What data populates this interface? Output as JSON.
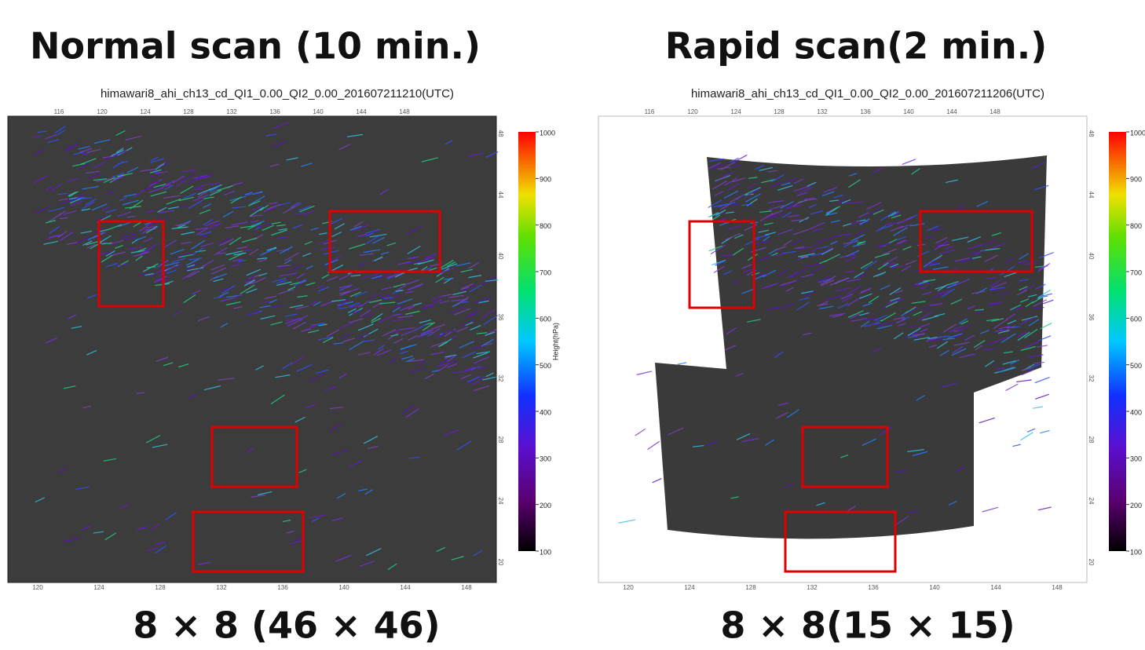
{
  "panels": [
    {
      "title": "Normal scan (10 min.)",
      "subtitle": "himawari8_ahi_ch13_cd_QI1_0.00_QI2_0.00_201607211210(UTC)",
      "caption": "8 × 8 (46 × 46)",
      "top_lon_ticks": [
        "116",
        "120",
        "124",
        "128",
        "132",
        "136",
        "140",
        "144",
        "148"
      ],
      "bottom_lon_ticks": [
        "120",
        "124",
        "128",
        "132",
        "136",
        "140",
        "144",
        "148"
      ],
      "lat_ticks": [
        "48",
        "44",
        "40",
        "36",
        "32",
        "28",
        "24",
        "20"
      ],
      "colorbar": {
        "label": "Height(hPa)",
        "ticks": [
          "1000",
          "900",
          "800",
          "700",
          "600",
          "500",
          "400",
          "300",
          "200",
          "100"
        ]
      }
    },
    {
      "title": "Rapid scan(2 min.)",
      "subtitle": "himawari8_ahi_ch13_cd_QI1_0.00_QI2_0.00_201607211206(UTC)",
      "caption": "8 × 8(15 × 15)",
      "top_lon_ticks": [
        "116",
        "120",
        "124",
        "128",
        "132",
        "136",
        "140",
        "144",
        "148"
      ],
      "bottom_lon_ticks": [
        "120",
        "124",
        "128",
        "132",
        "136",
        "140",
        "144",
        "148"
      ],
      "lat_ticks": [
        "48",
        "44",
        "40",
        "36",
        "32",
        "28",
        "24",
        "20"
      ],
      "colorbar": {
        "ticks": [
          "1000",
          "900",
          "800",
          "700",
          "600",
          "500",
          "400",
          "300",
          "200",
          "100"
        ]
      }
    }
  ]
}
